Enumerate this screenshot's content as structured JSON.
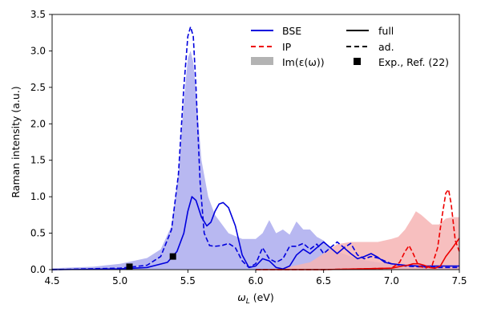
{
  "chart_data": {
    "type": "line",
    "xlabel_prefix": "ω",
    "xlabel_sub": "L",
    "xlabel_unit": " (eV)",
    "ylabel": "Raman intensity (a.u.)",
    "xlim": [
      4.5,
      7.5
    ],
    "ylim": [
      0,
      3.5
    ],
    "xticks": [
      4.5,
      5.0,
      5.5,
      6.0,
      6.5,
      7.0,
      7.5
    ],
    "xtick_labels": [
      "4.5",
      "5.0",
      "5.5",
      "6.0",
      "6.5",
      "7.0",
      "7.5"
    ],
    "yticks": [
      0,
      0.5,
      1.0,
      1.5,
      2.0,
      2.5,
      3.0,
      3.5
    ],
    "ytick_labels": [
      "0.0",
      "0.5",
      "1.0",
      "1.5",
      "2.0",
      "2.5",
      "3.0",
      "3.5"
    ],
    "colors": {
      "bse": "#0000dd",
      "ip": "#ee0000",
      "bse_fill": "#b4b4f0",
      "ip_fill": "#f6b4b4",
      "legend_gray": "#b3b3b3"
    },
    "legend": {
      "bse": "BSE",
      "ip": "IP",
      "im_eps": "Im(ε(ω))",
      "full": "full",
      "ad": "ad.",
      "exp": "Exp., Ref. (22)"
    },
    "series": [
      {
        "name": "BSE full",
        "style": "solid",
        "x": [
          4.5,
          5.0,
          5.2,
          5.35,
          5.42,
          5.47,
          5.5,
          5.53,
          5.56,
          5.6,
          5.64,
          5.67,
          5.7,
          5.73,
          5.76,
          5.8,
          5.85,
          5.9,
          5.95,
          6.0,
          6.05,
          6.1,
          6.15,
          6.2,
          6.25,
          6.3,
          6.35,
          6.4,
          6.45,
          6.5,
          6.55,
          6.6,
          6.65,
          6.7,
          6.75,
          6.8,
          6.85,
          6.9,
          6.95,
          7.0,
          7.1,
          7.2,
          7.3,
          7.5
        ],
        "y": [
          0.0,
          0.01,
          0.03,
          0.1,
          0.25,
          0.5,
          0.8,
          1.0,
          0.95,
          0.72,
          0.6,
          0.65,
          0.8,
          0.9,
          0.92,
          0.85,
          0.6,
          0.2,
          0.03,
          0.05,
          0.15,
          0.12,
          0.03,
          0.01,
          0.05,
          0.2,
          0.28,
          0.22,
          0.3,
          0.38,
          0.3,
          0.22,
          0.3,
          0.22,
          0.15,
          0.18,
          0.22,
          0.17,
          0.1,
          0.08,
          0.06,
          0.05,
          0.05,
          0.05
        ]
      },
      {
        "name": "BSE ad.",
        "style": "dashed",
        "x": [
          4.5,
          5.0,
          5.2,
          5.3,
          5.38,
          5.43,
          5.47,
          5.5,
          5.52,
          5.54,
          5.56,
          5.59,
          5.62,
          5.66,
          5.7,
          5.75,
          5.8,
          5.85,
          5.9,
          5.95,
          6.0,
          6.05,
          6.1,
          6.15,
          6.2,
          6.25,
          6.3,
          6.35,
          6.4,
          6.45,
          6.5,
          6.55,
          6.6,
          6.65,
          6.7,
          6.75,
          6.8,
          6.85,
          6.9,
          7.0,
          7.1,
          7.2,
          7.35,
          7.5
        ],
        "y": [
          0.0,
          0.02,
          0.06,
          0.18,
          0.55,
          1.3,
          2.5,
          3.2,
          3.33,
          3.2,
          2.5,
          1.2,
          0.5,
          0.33,
          0.32,
          0.33,
          0.36,
          0.3,
          0.12,
          0.03,
          0.08,
          0.3,
          0.15,
          0.1,
          0.15,
          0.32,
          0.32,
          0.36,
          0.28,
          0.35,
          0.22,
          0.3,
          0.38,
          0.3,
          0.36,
          0.2,
          0.15,
          0.18,
          0.16,
          0.08,
          0.05,
          0.04,
          0.03,
          0.03
        ]
      },
      {
        "name": "IP full",
        "style": "solid",
        "x": [
          6.0,
          6.5,
          7.0,
          7.08,
          7.12,
          7.16,
          7.2,
          7.24,
          7.28,
          7.32,
          7.36,
          7.4,
          7.45,
          7.5
        ],
        "y": [
          0.0,
          0.0,
          0.02,
          0.05,
          0.06,
          0.08,
          0.08,
          0.06,
          0.03,
          0.02,
          0.05,
          0.18,
          0.3,
          0.43
        ]
      },
      {
        "name": "IP ad.",
        "style": "dashed",
        "x": [
          6.0,
          6.5,
          7.0,
          7.06,
          7.1,
          7.13,
          7.16,
          7.2,
          7.25,
          7.3,
          7.34,
          7.37,
          7.4,
          7.42,
          7.44,
          7.47,
          7.5
        ],
        "y": [
          0.0,
          0.0,
          0.02,
          0.1,
          0.25,
          0.33,
          0.22,
          0.05,
          0.02,
          0.06,
          0.3,
          0.7,
          1.05,
          1.1,
          0.9,
          0.4,
          0.25
        ]
      }
    ],
    "fills": [
      {
        "name": "BSE Im(eps)",
        "x": [
          4.5,
          4.8,
          5.0,
          5.2,
          5.3,
          5.38,
          5.43,
          5.47,
          5.5,
          5.52,
          5.54,
          5.57,
          5.6,
          5.65,
          5.7,
          5.8,
          5.9,
          6.0,
          6.05,
          6.1,
          6.15,
          6.2,
          6.25,
          6.3,
          6.35,
          6.4,
          6.45,
          6.5,
          6.55,
          6.6,
          6.7,
          6.8,
          6.9,
          7.0,
          7.2,
          7.5
        ],
        "y": [
          0.02,
          0.04,
          0.08,
          0.16,
          0.28,
          0.6,
          1.3,
          2.3,
          2.9,
          3.0,
          2.85,
          2.2,
          1.5,
          1.0,
          0.75,
          0.5,
          0.42,
          0.42,
          0.5,
          0.68,
          0.5,
          0.55,
          0.48,
          0.66,
          0.55,
          0.55,
          0.45,
          0.4,
          0.3,
          0.25,
          0.18,
          0.13,
          0.1,
          0.08,
          0.06,
          0.05
        ]
      },
      {
        "name": "IP Im(eps)",
        "x": [
          6.0,
          6.2,
          6.4,
          6.5,
          6.6,
          6.7,
          6.8,
          6.9,
          7.0,
          7.05,
          7.1,
          7.15,
          7.18,
          7.22,
          7.3,
          7.35,
          7.4,
          7.45,
          7.5
        ],
        "y": [
          0.0,
          0.02,
          0.1,
          0.22,
          0.35,
          0.38,
          0.38,
          0.38,
          0.42,
          0.45,
          0.55,
          0.7,
          0.8,
          0.75,
          0.62,
          0.62,
          0.7,
          0.72,
          0.72
        ]
      }
    ],
    "experiment": {
      "name": "Exp., Ref. (22)",
      "x": [
        5.07,
        5.39
      ],
      "y": [
        0.04,
        0.18
      ]
    }
  }
}
